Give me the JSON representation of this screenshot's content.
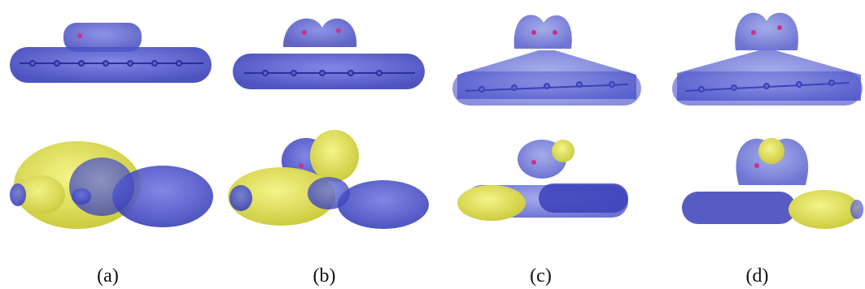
{
  "figure": {
    "panels": [
      {
        "label": "(a)"
      },
      {
        "label": "(b)"
      },
      {
        "label": "(c)"
      },
      {
        "label": "(d)"
      }
    ]
  },
  "colors": {
    "blue_isosurface": "#4a52c8",
    "blue_dark": "#2a2f9a",
    "yellow_isosurface": "#e8e86a",
    "atom_magenta": "#c8328c",
    "background": "#ffffff"
  }
}
